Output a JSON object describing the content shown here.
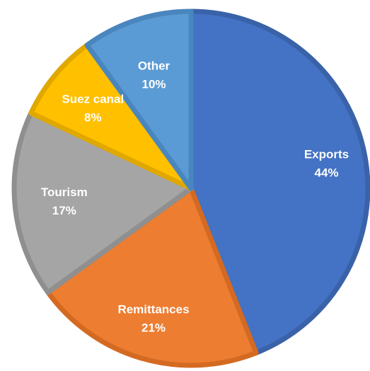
{
  "chart_data": {
    "type": "pie",
    "title": "",
    "slices": [
      {
        "label": "Exports",
        "value": 44,
        "display": "44%",
        "color": "#4472C4",
        "edge": "#3A62A8"
      },
      {
        "label": "Remittances",
        "value": 21,
        "display": "21%",
        "color": "#ED7D31",
        "edge": "#D46A22"
      },
      {
        "label": "Tourism",
        "value": 17,
        "display": "17%",
        "color": "#A5A5A5",
        "edge": "#8F8F8F"
      },
      {
        "label": "Suez canal",
        "value": 8,
        "display": "8%",
        "color": "#FFC000",
        "edge": "#E0A800"
      },
      {
        "label": "Other",
        "value": 10,
        "display": "10%",
        "color": "#5B9BD5",
        "edge": "#4A86BE"
      }
    ],
    "start_angle_deg": 0,
    "direction": "clockwise",
    "legend": "none",
    "data_labels": "inside"
  }
}
